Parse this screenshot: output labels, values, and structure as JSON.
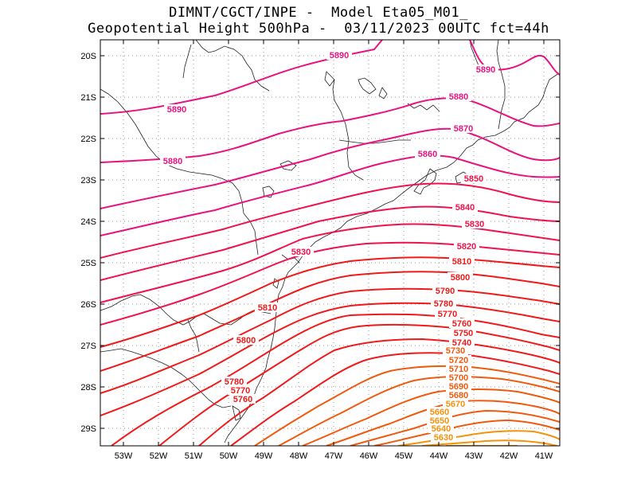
{
  "header": {
    "line1": "DIMNT/CGCT/INPE -  Model Eta05_M01_",
    "line2": "Geopotential Height 500hPa -  03/11/2023 00UTC fct=44h"
  },
  "axes": {
    "lat_labels": [
      "20S",
      "21S",
      "22S",
      "23S",
      "24S",
      "25S",
      "26S",
      "27S",
      "28S",
      "29S"
    ],
    "lon_labels": [
      "53W",
      "52W",
      "51W",
      "50W",
      "49W",
      "48W",
      "47W",
      "46W",
      "45W",
      "44W",
      "43W",
      "42W",
      "41W"
    ]
  },
  "colors": {
    "magenta": "#e8137f",
    "crimson": "#f0124a",
    "red": "#f01a1a",
    "orange_red": "#f05a0e",
    "orange": "#f5920a",
    "coast": "#222222",
    "grid": "#999999"
  },
  "contours": [
    {
      "value": "5890",
      "color": "#e8137f"
    },
    {
      "value": "5880",
      "color": "#e8137f"
    },
    {
      "value": "5870",
      "color": "#e8137f"
    },
    {
      "value": "5860",
      "color": "#e8137f"
    },
    {
      "value": "5850",
      "color": "#f0124a"
    },
    {
      "value": "5840",
      "color": "#f0124a"
    },
    {
      "value": "5830",
      "color": "#f0124a"
    },
    {
      "value": "5820",
      "color": "#f0124a"
    },
    {
      "value": "5810",
      "color": "#f01a1a"
    },
    {
      "value": "5800",
      "color": "#f01a1a"
    },
    {
      "value": "5790",
      "color": "#f01a1a"
    },
    {
      "value": "5780",
      "color": "#f01a1a"
    },
    {
      "value": "5770",
      "color": "#f01a1a"
    },
    {
      "value": "5760",
      "color": "#f01a1a"
    },
    {
      "value": "5750",
      "color": "#f01a1a"
    },
    {
      "value": "5740",
      "color": "#f01a1a"
    },
    {
      "value": "5730",
      "color": "#f05a0e"
    },
    {
      "value": "5720",
      "color": "#f05a0e"
    },
    {
      "value": "5710",
      "color": "#f05a0e"
    },
    {
      "value": "5700",
      "color": "#f05a0e"
    },
    {
      "value": "5690",
      "color": "#f05a0e"
    },
    {
      "value": "5680",
      "color": "#f05a0e"
    },
    {
      "value": "5670",
      "color": "#f5920a"
    },
    {
      "value": "5660",
      "color": "#f5920a"
    },
    {
      "value": "5650",
      "color": "#f5920a"
    },
    {
      "value": "5640",
      "color": "#f5920a"
    },
    {
      "value": "5630",
      "color": "#f5920a"
    }
  ],
  "contour_labels": [
    {
      "text": "5890",
      "color": "#e8137f"
    },
    {
      "text": "5890",
      "color": "#e8137f"
    },
    {
      "text": "5890",
      "color": "#e8137f"
    },
    {
      "text": "5880",
      "color": "#e8137f"
    },
    {
      "text": "5880",
      "color": "#e8137f"
    },
    {
      "text": "5870",
      "color": "#e8137f"
    },
    {
      "text": "5860",
      "color": "#e8137f"
    },
    {
      "text": "5850",
      "color": "#f0124a"
    },
    {
      "text": "5840",
      "color": "#f0124a"
    },
    {
      "text": "5830",
      "color": "#f0124a"
    },
    {
      "text": "5830",
      "color": "#f0124a"
    },
    {
      "text": "5820",
      "color": "#f0124a"
    },
    {
      "text": "5810",
      "color": "#f01a1a"
    },
    {
      "text": "5810",
      "color": "#f01a1a"
    },
    {
      "text": "5800",
      "color": "#f01a1a"
    },
    {
      "text": "5800",
      "color": "#f01a1a"
    },
    {
      "text": "5790",
      "color": "#f01a1a"
    },
    {
      "text": "5780",
      "color": "#f01a1a"
    },
    {
      "text": "5780",
      "color": "#f01a1a"
    },
    {
      "text": "5770",
      "color": "#f01a1a"
    },
    {
      "text": "5770",
      "color": "#f01a1a"
    },
    {
      "text": "5760",
      "color": "#f01a1a"
    },
    {
      "text": "5760",
      "color": "#f01a1a"
    },
    {
      "text": "5750",
      "color": "#f01a1a"
    },
    {
      "text": "5740",
      "color": "#f01a1a"
    },
    {
      "text": "5730",
      "color": "#f05a0e"
    },
    {
      "text": "5720",
      "color": "#f05a0e"
    },
    {
      "text": "5710",
      "color": "#f05a0e"
    },
    {
      "text": "5700",
      "color": "#f05a0e"
    },
    {
      "text": "5690",
      "color": "#f05a0e"
    },
    {
      "text": "5680",
      "color": "#f05a0e"
    },
    {
      "text": "5670",
      "color": "#f5920a"
    },
    {
      "text": "5660",
      "color": "#f5920a"
    },
    {
      "text": "5650",
      "color": "#f5920a"
    },
    {
      "text": "5640",
      "color": "#f5920a"
    },
    {
      "text": "5630",
      "color": "#f5920a"
    }
  ]
}
